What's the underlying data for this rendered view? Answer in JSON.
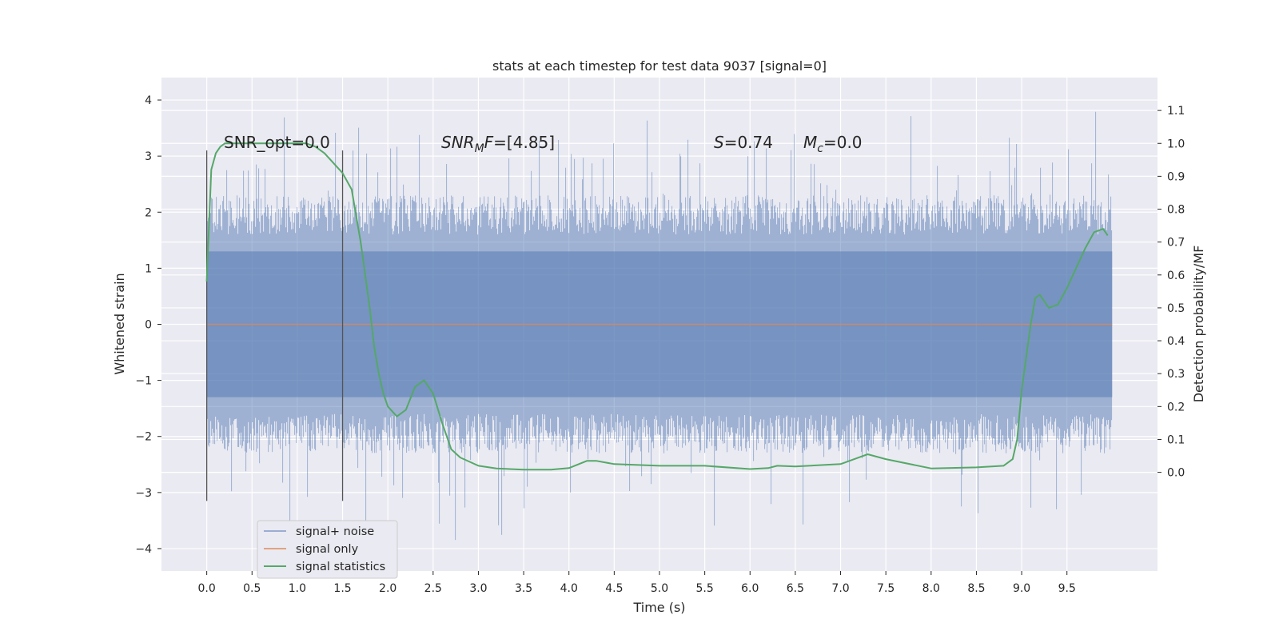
{
  "chart_data": {
    "type": "line",
    "title": "stats at each timestep for test data 9037 [signal=0]",
    "xlabel": "Time (s)",
    "ylabel": "Whitened strain",
    "y2label": "Detection probability/MF",
    "xlim": [
      -0.5,
      10.5
    ],
    "ylim": [
      -4.4,
      4.4
    ],
    "y2lim": [
      -0.3,
      1.2
    ],
    "xticks": [
      0.0,
      0.5,
      1.0,
      1.5,
      2.0,
      2.5,
      3.0,
      3.5,
      4.0,
      4.5,
      5.0,
      5.5,
      6.0,
      6.5,
      7.0,
      7.5,
      8.0,
      8.5,
      9.0,
      9.5
    ],
    "xtick_labels": [
      "0.0",
      "0.5",
      "1.0",
      "1.5",
      "2.0",
      "2.5",
      "3.0",
      "3.5",
      "4.0",
      "4.5",
      "5.0",
      "5.5",
      "6.0",
      "6.5",
      "7.0",
      "7.5",
      "8.0",
      "8.5",
      "9.0",
      "9.5"
    ],
    "yticks": [
      -4,
      -3,
      -2,
      -1,
      0,
      1,
      2,
      3,
      4
    ],
    "ytick_labels": [
      "−4",
      "−3",
      "−2",
      "−1",
      "0",
      "1",
      "2",
      "3",
      "4"
    ],
    "y2ticks": [
      0.0,
      0.1,
      0.2,
      0.3,
      0.4,
      0.5,
      0.6,
      0.7,
      0.8,
      0.9,
      1.0,
      1.1
    ],
    "y2tick_labels": [
      "0.0",
      "0.1",
      "0.2",
      "0.3",
      "0.4",
      "0.5",
      "0.6",
      "0.7",
      "0.8",
      "0.9",
      "1.0",
      "1.1"
    ],
    "grid": true,
    "legend_position": "lower-left",
    "annotations": {
      "snr_opt": "SNR_opt=0.0",
      "snr_mf_main": "SNR",
      "snr_mf_sub": "M",
      "snr_mf_rest": "F",
      "snr_mf_value": "=[4.85]",
      "s_symbol": "S",
      "s_value": "=0.74",
      "mc_symbol": "M",
      "mc_sub": "c",
      "mc_value": "=0.0"
    },
    "vertical_lines_x": [
      0.0,
      1.5
    ],
    "vertical_lines_yrange": [
      -3.15,
      3.1
    ],
    "series": [
      {
        "name": "signal+ noise",
        "color": "#4c72b0",
        "axis": "left",
        "x_range": [
          0.0,
          10.0
        ],
        "core_band": [
          -1.3,
          1.3
        ],
        "peak_max": 4.0,
        "peak_min": -4.05
      },
      {
        "name": "signal only",
        "color": "#dd8452",
        "axis": "left",
        "x": [
          0.0,
          10.0
        ],
        "y": [
          0.0,
          0.0
        ]
      },
      {
        "name": "signal statistics",
        "color": "#55a868",
        "axis": "right",
        "x": [
          0.0,
          0.05,
          0.1,
          0.15,
          0.2,
          0.3,
          0.5,
          0.7,
          0.9,
          1.0,
          1.1,
          1.2,
          1.3,
          1.4,
          1.5,
          1.6,
          1.7,
          1.8,
          1.85,
          1.9,
          1.95,
          2.0,
          2.1,
          2.2,
          2.3,
          2.4,
          2.5,
          2.6,
          2.7,
          2.8,
          3.0,
          3.2,
          3.5,
          3.8,
          4.0,
          4.2,
          4.3,
          4.5,
          5.0,
          5.5,
          6.0,
          6.2,
          6.3,
          6.5,
          7.0,
          7.2,
          7.3,
          7.5,
          8.0,
          8.5,
          8.8,
          8.9,
          8.95,
          9.0,
          9.1,
          9.15,
          9.2,
          9.3,
          9.4,
          9.5,
          9.6,
          9.7,
          9.8,
          9.9,
          9.95
        ],
        "y": [
          0.58,
          0.92,
          0.97,
          0.99,
          1.0,
          1.0,
          1.0,
          1.0,
          1.0,
          1.0,
          1.0,
          0.99,
          0.97,
          0.94,
          0.91,
          0.86,
          0.7,
          0.5,
          0.38,
          0.3,
          0.24,
          0.2,
          0.17,
          0.19,
          0.26,
          0.28,
          0.24,
          0.15,
          0.07,
          0.045,
          0.02,
          0.012,
          0.008,
          0.008,
          0.013,
          0.035,
          0.035,
          0.025,
          0.02,
          0.02,
          0.01,
          0.013,
          0.02,
          0.018,
          0.025,
          0.045,
          0.055,
          0.04,
          0.012,
          0.015,
          0.02,
          0.04,
          0.1,
          0.25,
          0.45,
          0.53,
          0.54,
          0.5,
          0.51,
          0.56,
          0.62,
          0.68,
          0.73,
          0.74,
          0.72
        ]
      }
    ]
  }
}
